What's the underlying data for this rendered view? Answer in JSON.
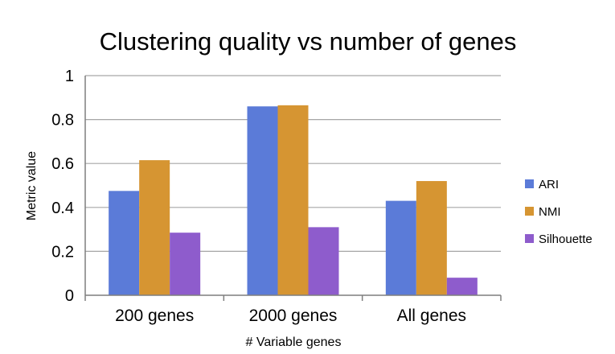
{
  "chart_data": {
    "type": "bar",
    "title": "Clustering quality vs number of genes",
    "xlabel": "# Variable genes",
    "ylabel": "Metric value",
    "categories": [
      "200 genes",
      "2000 genes",
      "All genes"
    ],
    "series": [
      {
        "name": "ARI",
        "values": [
          0.475,
          0.86,
          0.43
        ],
        "color": "#5B7BD8"
      },
      {
        "name": "NMI",
        "values": [
          0.615,
          0.865,
          0.52
        ],
        "color": "#D69532"
      },
      {
        "name": "Silhouette",
        "values": [
          0.285,
          0.31,
          0.08
        ],
        "color": "#8E5CCC"
      }
    ],
    "ylim": [
      0,
      1
    ],
    "yticks": [
      "0",
      "0.2",
      "0.4",
      "0.6",
      "0.8",
      "1"
    ],
    "grid": true,
    "legend_position": "right"
  }
}
